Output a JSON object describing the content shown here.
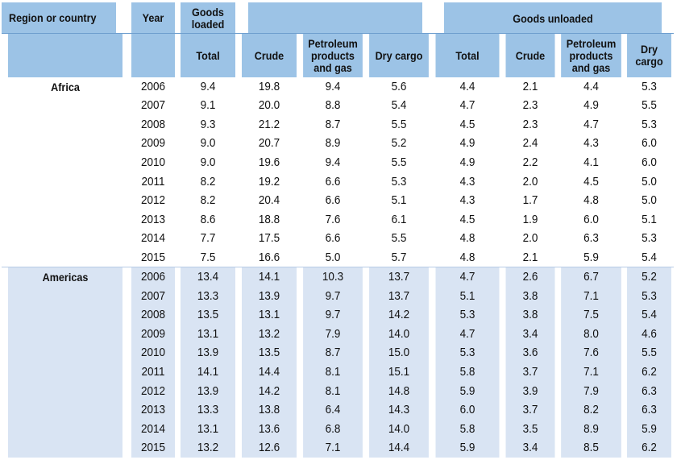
{
  "header": {
    "region_col": "Region or country",
    "year_col": "Year",
    "loaded_group": "Goods loaded",
    "unloaded_group": "Goods unloaded",
    "sub_columns": [
      "Total",
      "Crude",
      "Petroleum products and gas",
      "Dry cargo",
      "Total",
      "Crude",
      "Petroleum products and gas",
      "Dry cargo"
    ]
  },
  "groups": [
    {
      "region": "Africa",
      "rows": [
        [
          "2006",
          "9.4",
          "19.8",
          "9.4",
          "5.6",
          "4.4",
          "2.1",
          "4.4",
          "5.3"
        ],
        [
          "2007",
          "9.1",
          "20.0",
          "8.8",
          "5.4",
          "4.7",
          "2.3",
          "4.9",
          "5.5"
        ],
        [
          "2008",
          "9.3",
          "21.2",
          "8.7",
          "5.5",
          "4.5",
          "2.3",
          "4.7",
          "5.3"
        ],
        [
          "2009",
          "9.0",
          "20.7",
          "8.9",
          "5.2",
          "4.9",
          "2.4",
          "4.3",
          "6.0"
        ],
        [
          "2010",
          "9.0",
          "19.6",
          "9.4",
          "5.5",
          "4.9",
          "2.2",
          "4.1",
          "6.0"
        ],
        [
          "2011",
          "8.2",
          "19.2",
          "6.6",
          "5.3",
          "4.3",
          "2.0",
          "4.5",
          "5.0"
        ],
        [
          "2012",
          "8.2",
          "20.4",
          "6.6",
          "5.1",
          "4.3",
          "1.7",
          "4.8",
          "5.0"
        ],
        [
          "2013",
          "8.6",
          "18.8",
          "7.6",
          "6.1",
          "4.5",
          "1.9",
          "6.0",
          "5.1"
        ],
        [
          "2014",
          "7.7",
          "17.5",
          "6.6",
          "5.5",
          "4.8",
          "2.0",
          "6.3",
          "5.3"
        ],
        [
          "2015",
          "7.5",
          "16.6",
          "5.0",
          "5.7",
          "4.8",
          "2.1",
          "5.9",
          "5.4"
        ]
      ]
    },
    {
      "region": "Americas",
      "rows": [
        [
          "2006",
          "13.4",
          "14.1",
          "10.3",
          "13.7",
          "4.7",
          "2.6",
          "6.7",
          "5.2"
        ],
        [
          "2007",
          "13.3",
          "13.9",
          "9.7",
          "13.7",
          "5.1",
          "3.8",
          "7.1",
          "5.3"
        ],
        [
          "2008",
          "13.5",
          "13.1",
          "9.7",
          "14.2",
          "5.3",
          "3.8",
          "7.5",
          "5.4"
        ],
        [
          "2009",
          "13.1",
          "13.2",
          "7.9",
          "14.0",
          "4.7",
          "3.4",
          "8.0",
          "4.6"
        ],
        [
          "2010",
          "13.9",
          "13.5",
          "8.7",
          "15.0",
          "5.3",
          "3.6",
          "7.6",
          "5.5"
        ],
        [
          "2011",
          "14.1",
          "14.4",
          "8.1",
          "15.1",
          "5.8",
          "3.7",
          "7.1",
          "6.2"
        ],
        [
          "2012",
          "13.9",
          "14.2",
          "8.1",
          "14.8",
          "5.9",
          "3.9",
          "7.9",
          "6.3"
        ],
        [
          "2013",
          "13.3",
          "13.8",
          "6.4",
          "14.3",
          "6.0",
          "3.7",
          "8.2",
          "6.3"
        ],
        [
          "2014",
          "13.1",
          "13.6",
          "6.8",
          "14.0",
          "5.8",
          "3.5",
          "8.9",
          "5.9"
        ],
        [
          "2015",
          "13.2",
          "12.6",
          "7.1",
          "14.4",
          "5.9",
          "3.4",
          "8.5",
          "6.2"
        ]
      ]
    }
  ],
  "colors": {
    "header_bg": "#9cc3e6",
    "band_bg": "#d9e4f3",
    "plain_bg": "#ffffff"
  }
}
